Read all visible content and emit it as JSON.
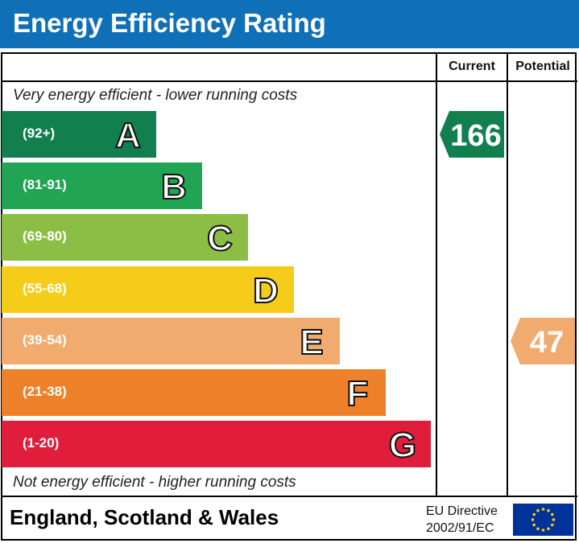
{
  "header": {
    "title": "Energy Efficiency Rating"
  },
  "columns": {
    "current": "Current",
    "potential": "Potential"
  },
  "captions": {
    "top": "Very energy efficient - lower running costs",
    "bottom": "Not energy efficient - higher running costs"
  },
  "bands": [
    {
      "letter": "A",
      "range": "(92+)",
      "color": "#127f4f"
    },
    {
      "letter": "B",
      "range": "(81-91)",
      "color": "#21a453"
    },
    {
      "letter": "C",
      "range": "(69-80)",
      "color": "#8cbd44"
    },
    {
      "letter": "D",
      "range": "(55-68)",
      "color": "#f5cc1a"
    },
    {
      "letter": "E",
      "range": "(39-54)",
      "color": "#f1ab6f"
    },
    {
      "letter": "F",
      "range": "(21-38)",
      "color": "#ed8029"
    },
    {
      "letter": "G",
      "range": "(1-20)",
      "color": "#e01e3c"
    }
  ],
  "ratings": {
    "current": {
      "value": "166",
      "band": "A",
      "color": "#127f4f"
    },
    "potential": {
      "value": "47",
      "band": "E",
      "color": "#f1ab6f"
    }
  },
  "footer": {
    "region": "England, Scotland & Wales",
    "directive_line1": "EU Directive",
    "directive_line2": "2002/91/EC"
  },
  "icons": {
    "flag": "eu-flag-icon"
  }
}
